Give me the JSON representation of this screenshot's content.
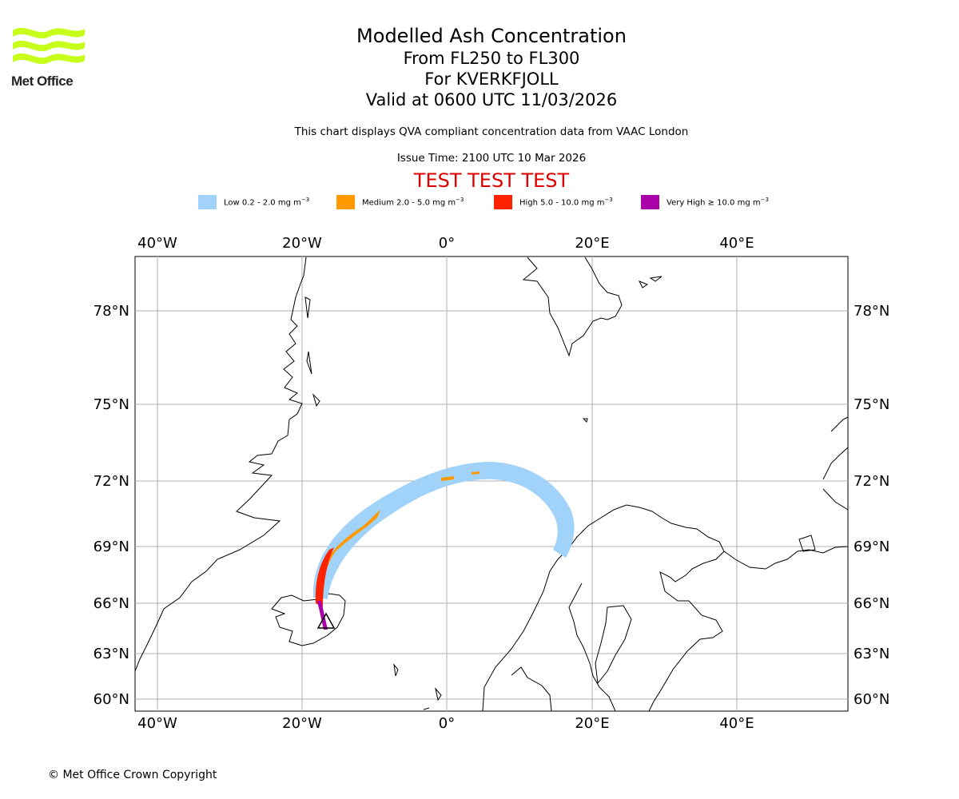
{
  "logo": {
    "text": "Met Office",
    "color": "#c6ff1a"
  },
  "title": {
    "line1": "Modelled Ash Concentration",
    "line2": "From FL250 to FL300",
    "line3": "For KVERKFJOLL",
    "line4": "Valid at 0600 UTC 11/03/2026"
  },
  "compliance_note": "This chart displays QVA compliant concentration data from VAAC London",
  "issue_time": "Issue Time: 2100 UTC 10 Mar 2026",
  "test_banner": "TEST TEST TEST",
  "legend": [
    {
      "label": "Low 0.2 - 2.0 mg m",
      "color": "#a0d2fa"
    },
    {
      "label": "Medium 2.0 - 5.0 mg m",
      "color": "#ff9900"
    },
    {
      "label": "High 5.0 - 10.0 mg m",
      "color": "#ff2200"
    },
    {
      "label": "Very High  ≥  10.0 mg m",
      "color": "#aa00aa"
    }
  ],
  "legend_unit_exp": "−3",
  "axes": {
    "lon_labels": [
      "40°W",
      "20°W",
      "0°",
      "20°E",
      "40°E"
    ],
    "lat_labels": [
      "78°N",
      "75°N",
      "72°N",
      "69°N",
      "66°N",
      "63°N",
      "60°N"
    ]
  },
  "volcano": {
    "name": "KVERKFJOLL",
    "symbol": "triangle"
  },
  "copyright": "© Met Office Crown Copyright"
}
